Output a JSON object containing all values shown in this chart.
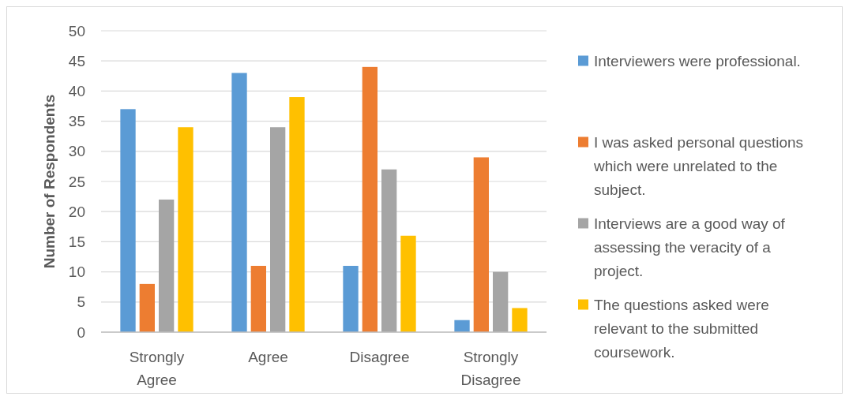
{
  "chart_data": {
    "type": "bar",
    "ylabel": "Number of Respondents",
    "categories": [
      "Strongly Agree",
      "Agree",
      "Disagree",
      "Strongly Disagree"
    ],
    "series": [
      {
        "name": "Interviewers were professional.",
        "color": "#5b9bd5",
        "values": [
          37,
          43,
          11,
          2
        ]
      },
      {
        "name": "I was asked personal questions which were unrelated to the subject.",
        "color": "#ed7d31",
        "values": [
          8,
          11,
          44,
          29
        ]
      },
      {
        "name": "Interviews are a good way of assessing the veracity of a project.",
        "color": "#a5a5a5",
        "values": [
          22,
          34,
          27,
          10
        ]
      },
      {
        "name": "The questions asked were relevant to the submitted coursework.",
        "color": "#ffc000",
        "values": [
          34,
          39,
          16,
          4
        ]
      }
    ],
    "ylim": [
      0,
      50
    ],
    "yticks": [
      0,
      5,
      10,
      15,
      20,
      25,
      30,
      35,
      40,
      45,
      50
    ],
    "grid": "y",
    "legend": "right"
  }
}
